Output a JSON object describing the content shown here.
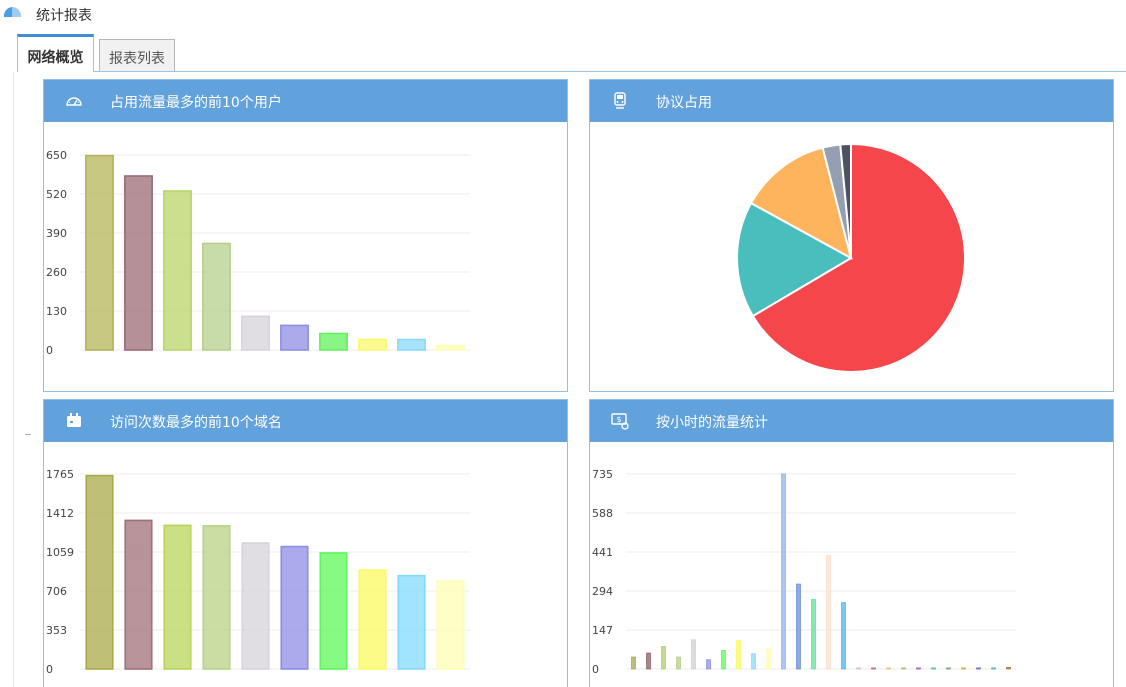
{
  "header": {
    "title": "统计报表"
  },
  "tabs": [
    {
      "label": "网络概览",
      "active": true
    },
    {
      "label": "报表列表",
      "active": false
    }
  ],
  "panels": {
    "top_users": {
      "title": "占用流量最多的前10个用户",
      "icon": "speedometer-icon"
    },
    "protocols": {
      "title": "协议占用",
      "icon": "train-icon"
    },
    "top_domains": {
      "title": "访问次数最多的前10个域名",
      "icon": "calendar-icon"
    },
    "hourly": {
      "title": "按小时的流量统计",
      "icon": "money-monitor-icon"
    }
  },
  "chart_data": [
    {
      "id": "top_users",
      "type": "bar",
      "ylim": [
        0,
        650
      ],
      "yticks": [
        0,
        130,
        260,
        390,
        520,
        650
      ],
      "values": [
        648,
        580,
        530,
        355,
        112,
        82,
        55,
        35,
        35,
        15
      ],
      "colors": [
        "#b5b55a",
        "#9c6b77",
        "#b9d668",
        "#b6d08c",
        "#d7d3da",
        "#8f8fe6",
        "#63f15f",
        "#fbf86b",
        "#89d9fb",
        "#fdfdb3"
      ]
    },
    {
      "id": "protocols",
      "type": "pie",
      "values": [
        66.5,
        16.5,
        13.0,
        2.5,
        1.5
      ],
      "colors": [
        "#f5464b",
        "#49bebc",
        "#fdb45c",
        "#949fb1",
        "#4d5360"
      ]
    },
    {
      "id": "top_domains",
      "type": "bar",
      "ylim": [
        0,
        1765
      ],
      "yticks": [
        0,
        353,
        706,
        1059,
        1412,
        1765
      ],
      "values": [
        1750,
        1345,
        1300,
        1295,
        1140,
        1108,
        1050,
        895,
        845,
        795
      ],
      "colors": [
        "#aaaa4a",
        "#a07078",
        "#b9d45a",
        "#b8d384",
        "#d7d3da",
        "#8d8de6",
        "#5ef85a",
        "#fcfa60",
        "#83d9fd",
        "#fdfdb3"
      ]
    },
    {
      "id": "hourly",
      "type": "bar",
      "ylim": [
        0,
        735
      ],
      "yticks": [
        0,
        147,
        294,
        441,
        588,
        735
      ],
      "values": [
        45,
        60,
        85,
        45,
        110,
        35,
        70,
        108,
        58,
        75,
        735,
        320,
        262,
        428,
        250,
        4,
        4,
        4,
        4,
        4,
        4,
        4,
        4,
        4,
        4,
        6
      ],
      "colors": [
        "#a7a755",
        "#8e5f66",
        "#b2ce66",
        "#b5cf84",
        "#d3cfd6",
        "#8d8de6",
        "#5ef85a",
        "#fcfa60",
        "#89d9fd",
        "#fdfdb3",
        "#8fb3ef",
        "#6b8ed8",
        "#5ee29a",
        "#fce0c9",
        "#4fb1f5",
        "#d8b2e6",
        "#d25f6f",
        "#e6c56b",
        "#a0c060",
        "#a15fc0",
        "#50c0a0",
        "#7d9d80",
        "#d0b040",
        "#6b6bd0",
        "#4faed0",
        "#9c7f40"
      ]
    }
  ]
}
